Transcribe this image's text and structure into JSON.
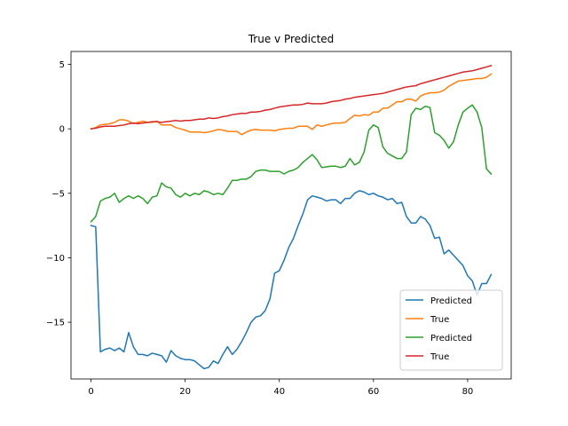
{
  "chart_data": {
    "type": "line",
    "title": "True v Predicted",
    "xlabel": "",
    "ylabel": "",
    "xlim": [
      -4.25,
      89.25
    ],
    "ylim": [
      -19.4,
      6.0
    ],
    "grid": false,
    "legend_position": "lower-right",
    "x_ticks": [
      0,
      20,
      40,
      60,
      80
    ],
    "y_ticks": [
      5,
      0,
      -5,
      -10,
      -15
    ],
    "series": [
      {
        "name": "Predicted",
        "color": "#1f77b4",
        "x": [
          0,
          1,
          2,
          3,
          4,
          5,
          6,
          7,
          8,
          9,
          10,
          11,
          12,
          13,
          14,
          15,
          16,
          17,
          18,
          19,
          20,
          21,
          22,
          23,
          24,
          25,
          26,
          27,
          28,
          29,
          30,
          31,
          32,
          33,
          34,
          35,
          36,
          37,
          38,
          39,
          40,
          41,
          42,
          43,
          44,
          45,
          46,
          47,
          48,
          49,
          50,
          51,
          52,
          53,
          54,
          55,
          56,
          57,
          58,
          59,
          60,
          61,
          62,
          63,
          64,
          65,
          66,
          67,
          68,
          69,
          70,
          71,
          72,
          73,
          74,
          75,
          76,
          77,
          78,
          79,
          80,
          81,
          82,
          83,
          84,
          85
        ],
        "values": [
          -7.5,
          -7.6,
          -17.3,
          -17.1,
          -17.0,
          -17.2,
          -17.0,
          -17.3,
          -15.8,
          -16.9,
          -17.5,
          -17.5,
          -17.6,
          -17.4,
          -17.5,
          -17.6,
          -18.1,
          -17.2,
          -17.6,
          -17.8,
          -17.9,
          -17.9,
          -18.0,
          -18.3,
          -18.6,
          -18.5,
          -18.0,
          -18.2,
          -17.5,
          -16.9,
          -17.5,
          -17.1,
          -16.5,
          -15.8,
          -15.0,
          -14.6,
          -14.5,
          -14.1,
          -13.2,
          -11.2,
          -11.0,
          -10.2,
          -9.2,
          -8.5,
          -7.5,
          -6.6,
          -5.5,
          -5.2,
          -5.3,
          -5.4,
          -5.6,
          -5.5,
          -5.5,
          -5.8,
          -5.4,
          -5.4,
          -5.0,
          -4.8,
          -4.9,
          -5.1,
          -5.0,
          -5.2,
          -5.3,
          -5.5,
          -5.4,
          -5.8,
          -5.7,
          -6.8,
          -7.3,
          -7.3,
          -6.8,
          -7.0,
          -7.5,
          -8.5,
          -8.4,
          -9.7,
          -9.4,
          -9.8,
          -10.2,
          -10.6,
          -11.4,
          -11.8,
          -12.9,
          -12.0,
          -12.0,
          -11.3
        ]
      },
      {
        "name": "True",
        "color": "#ff7f0e",
        "x": [
          0,
          1,
          2,
          3,
          4,
          5,
          6,
          7,
          8,
          9,
          10,
          11,
          12,
          13,
          14,
          15,
          16,
          17,
          18,
          19,
          20,
          21,
          22,
          23,
          24,
          25,
          26,
          27,
          28,
          29,
          30,
          31,
          32,
          33,
          34,
          35,
          36,
          37,
          38,
          39,
          40,
          41,
          42,
          43,
          44,
          45,
          46,
          47,
          48,
          49,
          50,
          51,
          52,
          53,
          54,
          55,
          56,
          57,
          58,
          59,
          60,
          61,
          62,
          63,
          64,
          65,
          66,
          67,
          68,
          69,
          70,
          71,
          72,
          73,
          74,
          75,
          76,
          77,
          78,
          79,
          80,
          81,
          82,
          83,
          84,
          85
        ],
        "values": [
          0.0,
          0.1,
          0.3,
          0.35,
          0.4,
          0.5,
          0.7,
          0.7,
          0.6,
          0.4,
          0.5,
          0.6,
          0.5,
          0.5,
          0.6,
          0.3,
          0.3,
          0.3,
          0.1,
          0.0,
          -0.1,
          -0.25,
          -0.25,
          -0.25,
          -0.3,
          -0.25,
          -0.15,
          -0.05,
          -0.1,
          -0.2,
          -0.2,
          -0.2,
          -0.45,
          -0.25,
          -0.1,
          -0.05,
          -0.1,
          -0.1,
          -0.1,
          -0.15,
          -0.05,
          0.0,
          0.05,
          0.05,
          0.2,
          0.2,
          0.2,
          -0.05,
          0.3,
          0.2,
          0.3,
          0.4,
          0.45,
          0.45,
          0.5,
          0.8,
          1.05,
          1.0,
          1.1,
          1.05,
          1.3,
          1.3,
          1.6,
          1.6,
          1.85,
          2.1,
          2.1,
          2.3,
          2.3,
          2.15,
          2.55,
          2.7,
          2.8,
          2.8,
          2.85,
          3.0,
          3.3,
          3.5,
          3.7,
          3.75,
          3.8,
          3.85,
          3.9,
          3.9,
          4.0,
          4.25
        ]
      },
      {
        "name": "Predicted",
        "color": "#2ca02c",
        "x": [
          0,
          1,
          2,
          3,
          4,
          5,
          6,
          7,
          8,
          9,
          10,
          11,
          12,
          13,
          14,
          15,
          16,
          17,
          18,
          19,
          20,
          21,
          22,
          23,
          24,
          25,
          26,
          27,
          28,
          29,
          30,
          31,
          32,
          33,
          34,
          35,
          36,
          37,
          38,
          39,
          40,
          41,
          42,
          43,
          44,
          45,
          46,
          47,
          48,
          49,
          50,
          51,
          52,
          53,
          54,
          55,
          56,
          57,
          58,
          59,
          60,
          61,
          62,
          63,
          64,
          65,
          66,
          67,
          68,
          69,
          70,
          71,
          72,
          73,
          74,
          75,
          76,
          77,
          78,
          79,
          80,
          81,
          82,
          83,
          84,
          85
        ],
        "values": [
          -7.2,
          -6.8,
          -5.6,
          -5.4,
          -5.3,
          -5.0,
          -5.7,
          -5.4,
          -5.2,
          -5.4,
          -5.2,
          -5.4,
          -5.8,
          -5.3,
          -5.2,
          -4.2,
          -4.5,
          -4.6,
          -5.1,
          -5.3,
          -5.0,
          -5.2,
          -5.0,
          -5.1,
          -4.8,
          -4.9,
          -5.1,
          -5.0,
          -5.1,
          -4.6,
          -4.0,
          -4.0,
          -3.9,
          -3.9,
          -3.7,
          -3.3,
          -3.2,
          -3.2,
          -3.3,
          -3.3,
          -3.3,
          -3.5,
          -3.3,
          -3.2,
          -3.0,
          -2.6,
          -2.3,
          -2.0,
          -2.4,
          -3.0,
          -2.95,
          -2.9,
          -2.9,
          -3.0,
          -2.9,
          -2.3,
          -2.8,
          -2.6,
          -1.8,
          -0.1,
          0.3,
          0.1,
          -1.4,
          -1.9,
          -2.1,
          -2.3,
          -2.3,
          -1.8,
          1.1,
          1.6,
          1.5,
          1.75,
          1.65,
          -0.3,
          -0.5,
          -0.9,
          -1.5,
          -1.0,
          0.3,
          1.3,
          1.6,
          1.85,
          1.3,
          0.1,
          -3.1,
          -3.5
        ]
      },
      {
        "name": "True",
        "color": "#d62728",
        "x": [
          0,
          1,
          2,
          3,
          4,
          5,
          6,
          7,
          8,
          9,
          10,
          11,
          12,
          13,
          14,
          15,
          16,
          17,
          18,
          19,
          20,
          21,
          22,
          23,
          24,
          25,
          26,
          27,
          28,
          29,
          30,
          31,
          32,
          33,
          34,
          35,
          36,
          37,
          38,
          39,
          40,
          41,
          42,
          43,
          44,
          45,
          46,
          47,
          48,
          49,
          50,
          51,
          52,
          53,
          54,
          55,
          56,
          57,
          58,
          59,
          60,
          61,
          62,
          63,
          64,
          65,
          66,
          67,
          68,
          69,
          70,
          71,
          72,
          73,
          74,
          75,
          76,
          77,
          78,
          79,
          80,
          81,
          82,
          83,
          84,
          85
        ],
        "values": [
          0.0,
          0.05,
          0.15,
          0.2,
          0.2,
          0.2,
          0.25,
          0.3,
          0.4,
          0.45,
          0.4,
          0.45,
          0.5,
          0.55,
          0.55,
          0.5,
          0.55,
          0.6,
          0.65,
          0.6,
          0.65,
          0.65,
          0.7,
          0.75,
          0.75,
          0.85,
          0.8,
          0.85,
          0.95,
          1.0,
          1.1,
          1.15,
          1.2,
          1.2,
          1.3,
          1.3,
          1.35,
          1.45,
          1.5,
          1.6,
          1.7,
          1.75,
          1.8,
          1.85,
          1.85,
          1.9,
          2.0,
          1.95,
          1.95,
          1.95,
          2.0,
          2.1,
          2.15,
          2.2,
          2.3,
          2.35,
          2.45,
          2.5,
          2.55,
          2.6,
          2.65,
          2.7,
          2.75,
          2.85,
          2.95,
          3.05,
          3.15,
          3.25,
          3.3,
          3.35,
          3.5,
          3.6,
          3.7,
          3.8,
          3.9,
          4.0,
          4.1,
          4.2,
          4.3,
          4.4,
          4.45,
          4.5,
          4.6,
          4.7,
          4.8,
          4.9
        ]
      }
    ]
  }
}
